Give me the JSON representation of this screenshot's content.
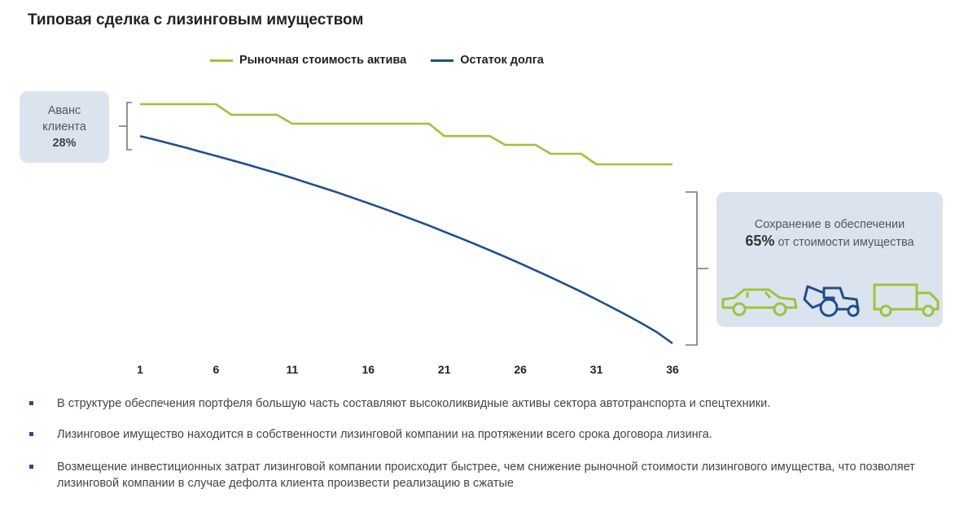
{
  "title": "Типовая сделка с лизинговым имуществом",
  "legend": [
    {
      "label": "Рыночная стоимость актива",
      "color": "#9cc43c"
    },
    {
      "label": "Остаток долга",
      "color": "#1f4e8c"
    }
  ],
  "callouts": {
    "advance_line1": "Аванс",
    "advance_line2": "клиента",
    "advance_value": "28%",
    "preserve_line1": "Сохранение в обеспечении",
    "preserve_pct": "65%",
    "preserve_rest": "от стоимости имущества"
  },
  "icons": [
    "car-icon",
    "tractor-icon",
    "truck-icon"
  ],
  "chart_data": {
    "type": "line",
    "x": [
      1,
      2,
      3,
      4,
      5,
      6,
      7,
      8,
      9,
      10,
      11,
      12,
      13,
      14,
      15,
      16,
      17,
      18,
      19,
      20,
      21,
      22,
      23,
      24,
      25,
      26,
      27,
      28,
      29,
      30,
      31,
      32,
      33,
      34,
      35,
      36
    ],
    "x_ticks": [
      "1",
      "6",
      "11",
      "16",
      "21",
      "26",
      "31",
      "36"
    ],
    "series": [
      {
        "name": "Рыночная стоимость актива",
        "color": "#9cc43c",
        "values": [
          100,
          100,
          100,
          100,
          100,
          100,
          94,
          94,
          94,
          94,
          89,
          89,
          89,
          89,
          89,
          89,
          89,
          89,
          89,
          89,
          82,
          82,
          82,
          82,
          77,
          77,
          77,
          72,
          72,
          72,
          66,
          66,
          66,
          66,
          66,
          66
        ]
      },
      {
        "name": "Остаток долга",
        "color": "#1f4e8c",
        "values": [
          82,
          79.9,
          77.7,
          75.5,
          73.1,
          70.8,
          68.4,
          66,
          63.5,
          61,
          58.4,
          55.6,
          52.9,
          50.1,
          47.1,
          44.1,
          41.1,
          37.9,
          34.7,
          31.5,
          28,
          24.6,
          21.1,
          17.5,
          13.8,
          10.1,
          6.2,
          2.3,
          -1.8,
          -5.9,
          -10.2,
          -14.6,
          -19.1,
          -23.8,
          -28.8,
          -35
        ]
      }
    ],
    "ylim": [
      -35,
      100
    ],
    "grid": false,
    "legend_position": "top"
  },
  "bullets": [
    "В структуре обеспечения портфеля большую часть составляют высоколиквидные активы сектора автотранспорта и спецтехники.",
    "Лизинговое имущество находится в собственности лизинговой компании на протяжении всего срока договора лизинга.",
    "Возмещение инвестиционных затрат лизинговой компании происходит быстрее, чем снижение рыночной стоимости лизингового имущества, что позволяет лизинговой компании в случае дефолта клиента произвести реализацию в сжатые"
  ]
}
